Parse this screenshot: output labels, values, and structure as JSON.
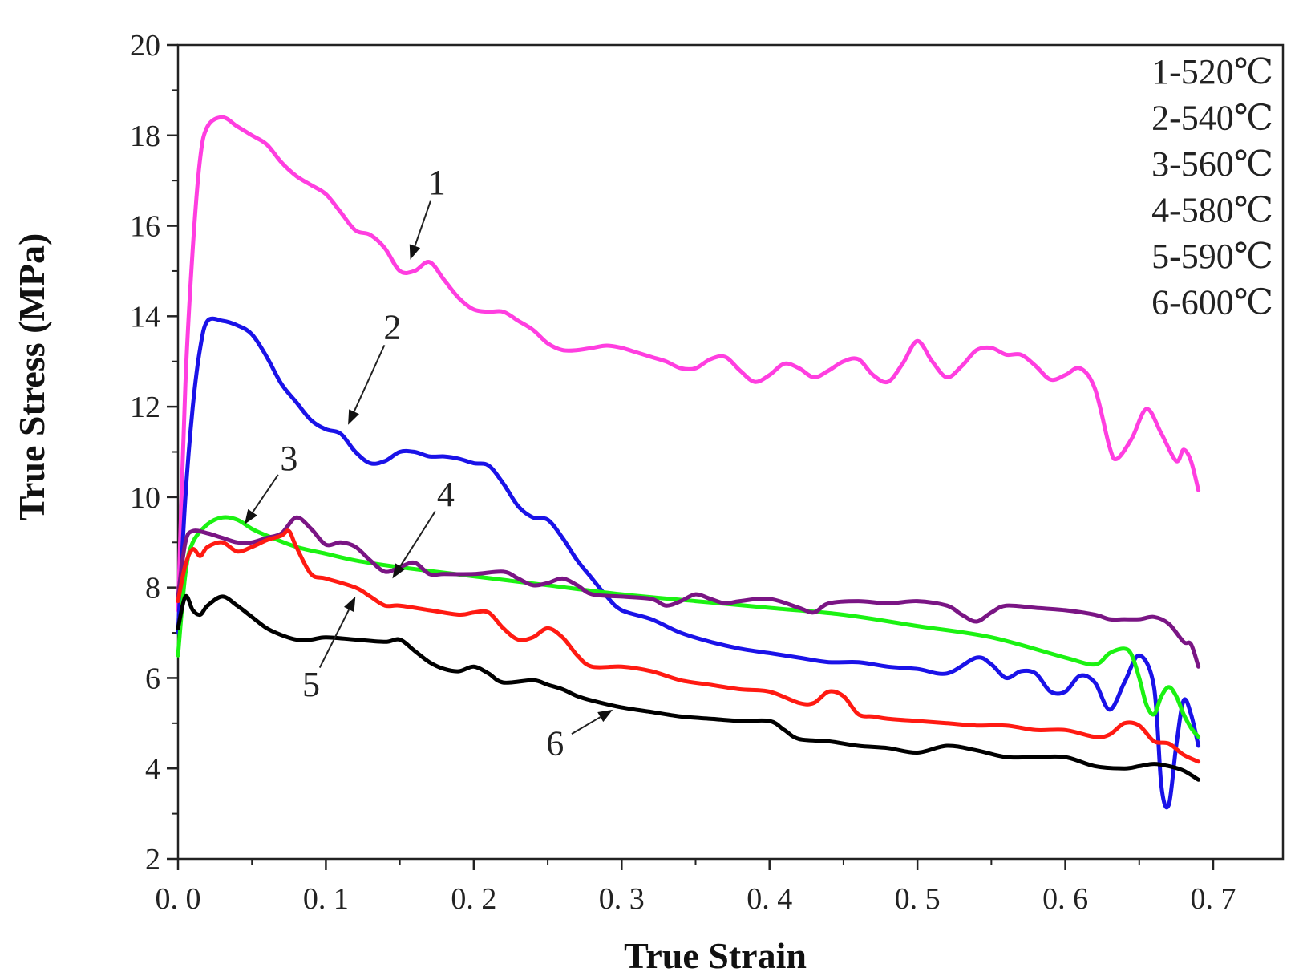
{
  "chart_data": {
    "type": "line",
    "title": "",
    "xlabel": "True Strain",
    "ylabel": "True Stress (MPa)",
    "xlim": [
      0.0,
      0.75
    ],
    "ylim": [
      2,
      20
    ],
    "xticks": [
      0.0,
      0.1,
      0.2,
      0.3,
      0.4,
      0.5,
      0.6,
      0.7
    ],
    "xtick_labels": [
      "0. 0",
      "0. 1",
      "0. 2",
      "0. 3",
      "0. 4",
      "0. 5",
      "0. 6",
      "0. 7"
    ],
    "yticks": [
      2,
      4,
      6,
      8,
      10,
      12,
      14,
      16,
      18,
      20
    ],
    "ytick_labels": [
      "2",
      "4",
      "6",
      "8",
      "10",
      "12",
      "14",
      "16",
      "18",
      "20"
    ],
    "grid": false,
    "legend_position": "top-right",
    "legend": [
      "1-520℃",
      "2-540℃",
      "3-560℃",
      "4-580℃",
      "5-590℃",
      "6-600℃"
    ],
    "series": [
      {
        "name": "1-520℃",
        "label": "1",
        "color": "#ff3ee0",
        "x": [
          0.0,
          0.005,
          0.01,
          0.015,
          0.02,
          0.03,
          0.04,
          0.05,
          0.06,
          0.07,
          0.08,
          0.09,
          0.1,
          0.11,
          0.12,
          0.13,
          0.14,
          0.15,
          0.16,
          0.17,
          0.18,
          0.19,
          0.2,
          0.21,
          0.22,
          0.23,
          0.24,
          0.25,
          0.26,
          0.27,
          0.28,
          0.29,
          0.3,
          0.31,
          0.32,
          0.33,
          0.34,
          0.35,
          0.36,
          0.37,
          0.38,
          0.39,
          0.4,
          0.41,
          0.42,
          0.43,
          0.44,
          0.45,
          0.46,
          0.47,
          0.48,
          0.49,
          0.5,
          0.51,
          0.52,
          0.53,
          0.54,
          0.55,
          0.56,
          0.57,
          0.58,
          0.59,
          0.6,
          0.61,
          0.62,
          0.63,
          0.635,
          0.645,
          0.655,
          0.665,
          0.675,
          0.68,
          0.685,
          0.69
        ],
        "y": [
          7.5,
          12.5,
          15.5,
          17.5,
          18.2,
          18.4,
          18.2,
          18.0,
          17.8,
          17.4,
          17.1,
          16.9,
          16.7,
          16.3,
          15.9,
          15.8,
          15.5,
          15.0,
          15.0,
          15.2,
          14.8,
          14.4,
          14.15,
          14.1,
          14.1,
          13.9,
          13.7,
          13.4,
          13.25,
          13.25,
          13.3,
          13.35,
          13.3,
          13.2,
          13.1,
          13.0,
          12.85,
          12.85,
          13.05,
          13.1,
          12.8,
          12.55,
          12.7,
          12.95,
          12.85,
          12.65,
          12.8,
          13.0,
          13.05,
          12.7,
          12.55,
          12.95,
          13.45,
          13.0,
          12.65,
          12.9,
          13.25,
          13.3,
          13.15,
          13.15,
          12.9,
          12.6,
          12.7,
          12.85,
          12.4,
          11.1,
          10.85,
          11.3,
          11.95,
          11.4,
          10.8,
          11.05,
          10.8,
          10.15
        ]
      },
      {
        "name": "2-540℃",
        "label": "2",
        "color": "#1a12e8",
        "x": [
          0.0,
          0.005,
          0.01,
          0.015,
          0.02,
          0.03,
          0.04,
          0.05,
          0.06,
          0.07,
          0.08,
          0.09,
          0.1,
          0.11,
          0.12,
          0.13,
          0.14,
          0.15,
          0.16,
          0.17,
          0.18,
          0.19,
          0.2,
          0.21,
          0.22,
          0.23,
          0.24,
          0.25,
          0.26,
          0.27,
          0.28,
          0.29,
          0.3,
          0.32,
          0.34,
          0.36,
          0.38,
          0.4,
          0.42,
          0.44,
          0.46,
          0.48,
          0.5,
          0.52,
          0.54,
          0.55,
          0.56,
          0.57,
          0.58,
          0.59,
          0.6,
          0.61,
          0.62,
          0.63,
          0.64,
          0.65,
          0.66,
          0.665,
          0.67,
          0.675,
          0.68,
          0.685,
          0.69
        ],
        "y": [
          7.0,
          10.0,
          12.0,
          13.3,
          13.9,
          13.9,
          13.8,
          13.6,
          13.1,
          12.5,
          12.1,
          11.7,
          11.5,
          11.4,
          11.0,
          10.75,
          10.8,
          11.0,
          11.0,
          10.9,
          10.9,
          10.85,
          10.75,
          10.7,
          10.3,
          9.8,
          9.55,
          9.5,
          9.1,
          8.6,
          8.2,
          7.8,
          7.5,
          7.3,
          7.0,
          6.8,
          6.65,
          6.55,
          6.45,
          6.35,
          6.35,
          6.25,
          6.2,
          6.1,
          6.45,
          6.3,
          6.0,
          6.15,
          6.1,
          5.7,
          5.7,
          6.05,
          5.9,
          5.3,
          5.9,
          6.5,
          5.8,
          3.6,
          3.2,
          4.5,
          5.5,
          5.2,
          4.5
        ]
      },
      {
        "name": "3-560℃",
        "label": "3",
        "color": "#1bf212",
        "x": [
          0.0,
          0.005,
          0.01,
          0.02,
          0.03,
          0.04,
          0.05,
          0.06,
          0.08,
          0.1,
          0.12,
          0.15,
          0.2,
          0.25,
          0.3,
          0.35,
          0.4,
          0.45,
          0.5,
          0.55,
          0.6,
          0.62,
          0.63,
          0.64,
          0.645,
          0.65,
          0.655,
          0.66,
          0.665,
          0.67,
          0.675,
          0.68,
          0.685,
          0.69
        ],
        "y": [
          6.5,
          8.3,
          9.0,
          9.4,
          9.55,
          9.5,
          9.3,
          9.15,
          8.9,
          8.75,
          8.6,
          8.45,
          8.25,
          8.05,
          7.85,
          7.7,
          7.55,
          7.4,
          7.15,
          6.9,
          6.45,
          6.3,
          6.55,
          6.65,
          6.5,
          6.0,
          5.4,
          5.2,
          5.6,
          5.8,
          5.6,
          5.2,
          4.9,
          4.7
        ]
      },
      {
        "name": "4-580℃",
        "label": "4",
        "color": "#7a1584",
        "x": [
          0.0,
          0.005,
          0.01,
          0.02,
          0.03,
          0.04,
          0.05,
          0.06,
          0.07,
          0.08,
          0.09,
          0.1,
          0.11,
          0.12,
          0.13,
          0.14,
          0.15,
          0.16,
          0.17,
          0.18,
          0.2,
          0.22,
          0.23,
          0.24,
          0.25,
          0.26,
          0.27,
          0.28,
          0.3,
          0.32,
          0.33,
          0.34,
          0.35,
          0.36,
          0.37,
          0.38,
          0.4,
          0.42,
          0.43,
          0.44,
          0.46,
          0.48,
          0.5,
          0.52,
          0.53,
          0.54,
          0.55,
          0.56,
          0.58,
          0.6,
          0.62,
          0.63,
          0.64,
          0.65,
          0.66,
          0.67,
          0.68,
          0.685,
          0.69
        ],
        "y": [
          7.8,
          9.0,
          9.25,
          9.2,
          9.1,
          9.0,
          9.0,
          9.1,
          9.2,
          9.55,
          9.3,
          8.95,
          9.0,
          8.9,
          8.6,
          8.35,
          8.45,
          8.55,
          8.3,
          8.3,
          8.3,
          8.35,
          8.2,
          8.05,
          8.1,
          8.2,
          8.05,
          7.85,
          7.8,
          7.75,
          7.6,
          7.7,
          7.85,
          7.75,
          7.65,
          7.7,
          7.75,
          7.55,
          7.45,
          7.65,
          7.7,
          7.65,
          7.7,
          7.6,
          7.4,
          7.25,
          7.45,
          7.6,
          7.55,
          7.5,
          7.4,
          7.3,
          7.3,
          7.3,
          7.35,
          7.2,
          6.8,
          6.75,
          6.25
        ]
      },
      {
        "name": "5-590℃",
        "label": "5",
        "color": "#ff1a12",
        "x": [
          0.0,
          0.005,
          0.01,
          0.015,
          0.02,
          0.03,
          0.04,
          0.05,
          0.06,
          0.07,
          0.075,
          0.08,
          0.09,
          0.1,
          0.12,
          0.13,
          0.14,
          0.15,
          0.17,
          0.19,
          0.2,
          0.21,
          0.22,
          0.23,
          0.24,
          0.25,
          0.26,
          0.27,
          0.28,
          0.3,
          0.32,
          0.34,
          0.36,
          0.38,
          0.4,
          0.42,
          0.43,
          0.44,
          0.45,
          0.46,
          0.47,
          0.48,
          0.5,
          0.52,
          0.54,
          0.56,
          0.58,
          0.6,
          0.62,
          0.63,
          0.64,
          0.65,
          0.66,
          0.67,
          0.68,
          0.69
        ],
        "y": [
          7.7,
          8.5,
          8.85,
          8.7,
          8.9,
          9.0,
          8.8,
          8.9,
          9.05,
          9.15,
          9.25,
          8.9,
          8.3,
          8.2,
          8.0,
          7.8,
          7.6,
          7.6,
          7.5,
          7.4,
          7.45,
          7.45,
          7.1,
          6.85,
          6.9,
          7.1,
          6.9,
          6.5,
          6.25,
          6.25,
          6.15,
          5.95,
          5.85,
          5.75,
          5.7,
          5.45,
          5.45,
          5.7,
          5.6,
          5.2,
          5.15,
          5.1,
          5.05,
          5.0,
          4.95,
          4.95,
          4.85,
          4.85,
          4.7,
          4.75,
          5.0,
          4.95,
          4.6,
          4.55,
          4.3,
          4.15
        ]
      },
      {
        "name": "6-600℃",
        "label": "6",
        "color": "#000000",
        "x": [
          0.0,
          0.005,
          0.01,
          0.015,
          0.02,
          0.03,
          0.04,
          0.05,
          0.06,
          0.07,
          0.08,
          0.09,
          0.1,
          0.12,
          0.14,
          0.15,
          0.16,
          0.17,
          0.18,
          0.19,
          0.2,
          0.21,
          0.22,
          0.24,
          0.25,
          0.26,
          0.27,
          0.28,
          0.3,
          0.32,
          0.34,
          0.36,
          0.38,
          0.4,
          0.41,
          0.42,
          0.44,
          0.46,
          0.48,
          0.5,
          0.52,
          0.54,
          0.56,
          0.58,
          0.6,
          0.62,
          0.64,
          0.65,
          0.66,
          0.67,
          0.68,
          0.69
        ],
        "y": [
          7.1,
          7.8,
          7.5,
          7.4,
          7.6,
          7.8,
          7.6,
          7.35,
          7.1,
          6.95,
          6.85,
          6.85,
          6.9,
          6.85,
          6.8,
          6.85,
          6.6,
          6.35,
          6.2,
          6.15,
          6.25,
          6.1,
          5.9,
          5.95,
          5.85,
          5.75,
          5.6,
          5.5,
          5.35,
          5.25,
          5.15,
          5.1,
          5.05,
          5.05,
          4.85,
          4.65,
          4.6,
          4.5,
          4.45,
          4.35,
          4.5,
          4.4,
          4.25,
          4.25,
          4.25,
          4.05,
          4.0,
          4.05,
          4.1,
          4.05,
          3.95,
          3.75
        ]
      }
    ],
    "annotations": [
      {
        "label": "1",
        "x": 0.175,
        "y": 16.7,
        "arrow_to": [
          0.157,
          15.25
        ]
      },
      {
        "label": "2",
        "x": 0.145,
        "y": 13.5,
        "arrow_to": [
          0.115,
          11.6
        ]
      },
      {
        "label": "3",
        "x": 0.075,
        "y": 10.6,
        "arrow_to": [
          0.045,
          9.4
        ]
      },
      {
        "label": "4",
        "x": 0.181,
        "y": 9.8,
        "arrow_to": [
          0.145,
          8.2
        ]
      },
      {
        "label": "5",
        "x": 0.09,
        "y": 5.6,
        "arrow_to": [
          0.12,
          7.8
        ]
      },
      {
        "label": "6",
        "x": 0.255,
        "y": 4.3,
        "arrow_to": [
          0.294,
          5.3
        ]
      }
    ]
  }
}
